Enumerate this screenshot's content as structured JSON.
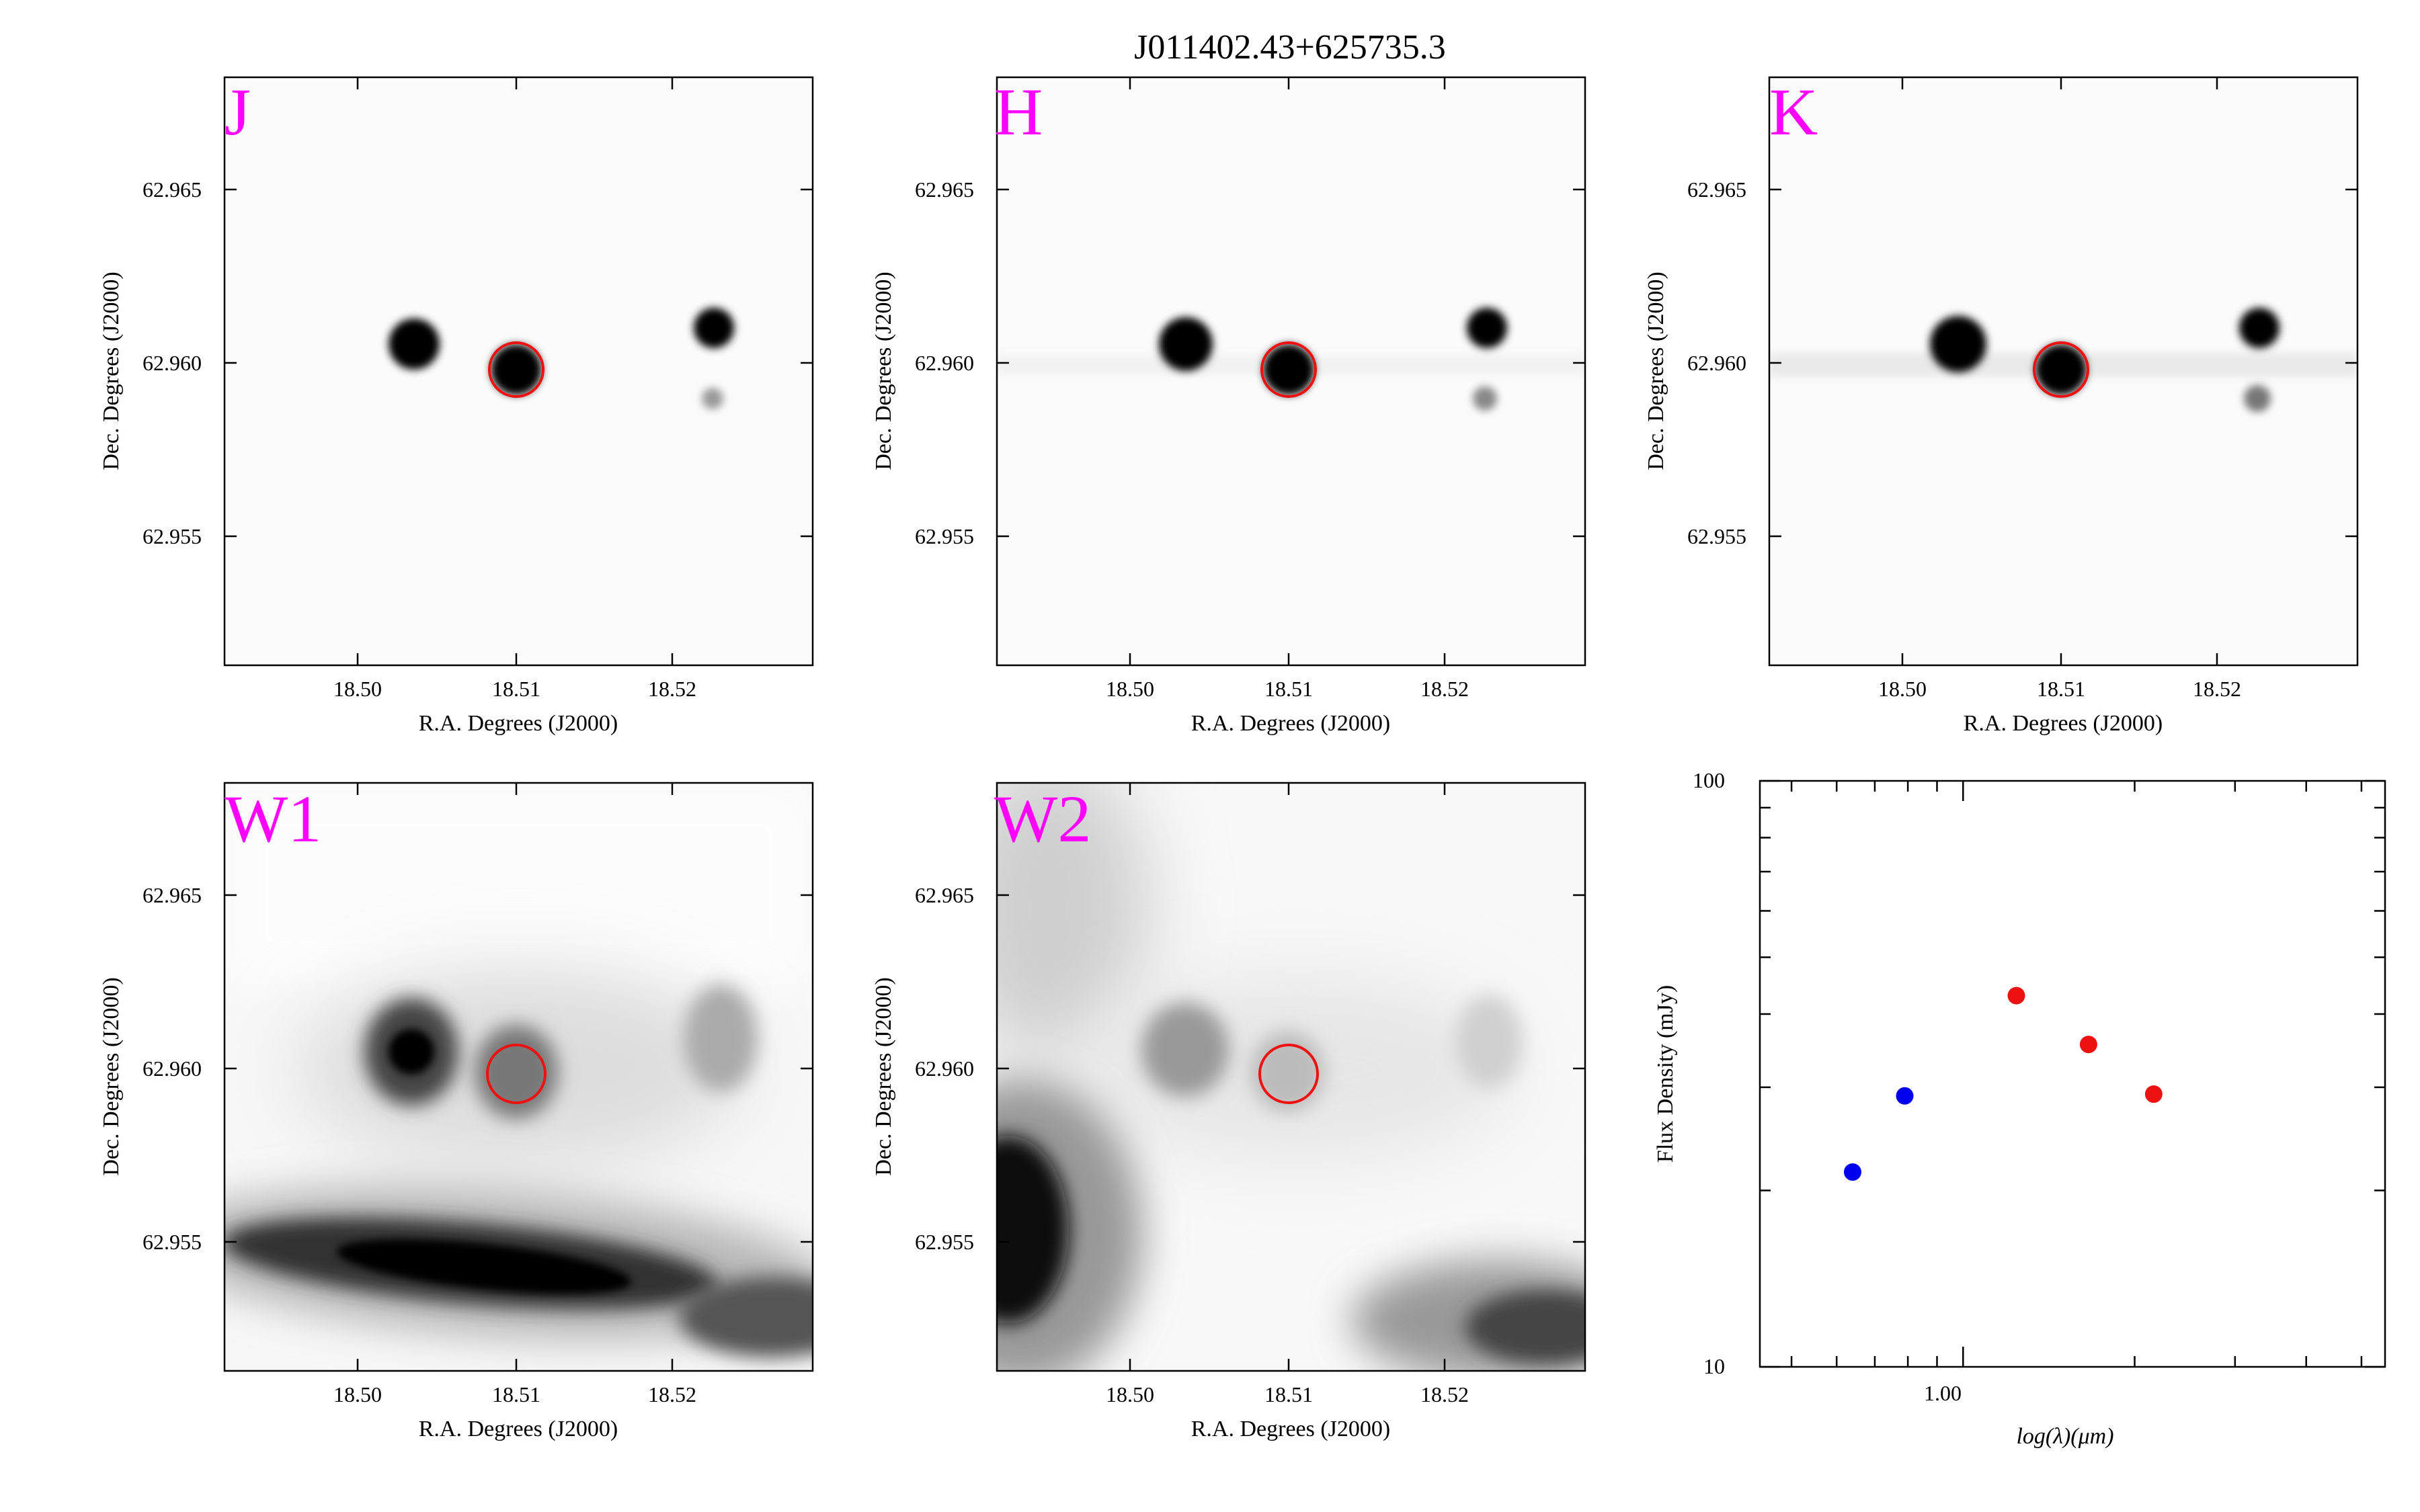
{
  "figure": {
    "title": "J011402.43+625735.3"
  },
  "image_panels": [
    {
      "band": "J",
      "xlabel": "R.A. Degrees (J2000)",
      "ylabel": "Dec. Degrees (J2000)",
      "x_ticks": [
        "18.50",
        "18.51",
        "18.52"
      ],
      "y_ticks": [
        "62.965",
        "62.960",
        "62.955"
      ]
    },
    {
      "band": "H",
      "xlabel": "R.A. Degrees (J2000)",
      "ylabel": "Dec. Degrees (J2000)",
      "x_ticks": [
        "18.50",
        "18.51",
        "18.52"
      ],
      "y_ticks": [
        "62.965",
        "62.960",
        "62.955"
      ]
    },
    {
      "band": "K",
      "xlabel": "R.A. Degrees (J2000)",
      "ylabel": "Dec. Degrees (J2000)",
      "x_ticks": [
        "18.50",
        "18.51",
        "18.52"
      ],
      "y_ticks": [
        "62.965",
        "62.960",
        "62.955"
      ]
    },
    {
      "band": "W1",
      "xlabel": "R.A. Degrees (J2000)",
      "ylabel": "Dec. Degrees (J2000)",
      "x_ticks": [
        "18.50",
        "18.51",
        "18.52"
      ],
      "y_ticks": [
        "62.965",
        "62.960",
        "62.955"
      ]
    },
    {
      "band": "W2",
      "xlabel": "R.A. Degrees (J2000)",
      "ylabel": "Dec. Degrees (J2000)",
      "x_ticks": [
        "18.50",
        "18.51",
        "18.52"
      ],
      "y_ticks": [
        "62.965",
        "62.960",
        "62.955"
      ]
    }
  ],
  "chart_data": {
    "type": "scatter",
    "title": "",
    "xlabel": "log(λ)(μm)",
    "ylabel": "Flux Density (mJy)",
    "xscale": "log",
    "yscale": "log",
    "xlim": [
      0.44,
      5.5
    ],
    "ylim": [
      10,
      100
    ],
    "x_tick_labels": [
      "1.00"
    ],
    "y_tick_labels": [
      "100",
      "10"
    ],
    "grid": false,
    "legend": "none",
    "series": [
      {
        "color": "#0000ee",
        "points": [
          {
            "x": 0.64,
            "y": 21.5
          },
          {
            "x": 0.79,
            "y": 29.0
          }
        ]
      },
      {
        "color": "#ee1111",
        "points": [
          {
            "x": 1.24,
            "y": 43.0
          },
          {
            "x": 1.66,
            "y": 35.5
          },
          {
            "x": 2.16,
            "y": 29.2
          }
        ]
      }
    ]
  }
}
